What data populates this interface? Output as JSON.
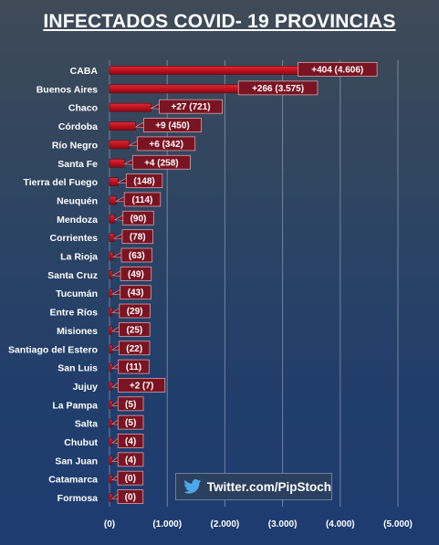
{
  "chart_data": {
    "type": "bar",
    "title": "INFECTADOS COVID- 19  PROVINCIAS",
    "orientation": "horizontal",
    "categories": [
      "CABA",
      "Buenos Aires",
      "Chaco",
      "Córdoba",
      "Río Negro",
      "Santa Fe",
      "Tierra del Fuego",
      "Neuquén",
      "Mendoza",
      "Corrientes",
      "La Rioja",
      "Santa Cruz",
      "Tucumán",
      "Entre Ríos",
      "Misiones",
      "Santiago del Estero",
      "San Luis",
      "Jujuy",
      "La Pampa",
      "Salta",
      "Chubut",
      "San Juan",
      "Catamarca",
      "Formosa"
    ],
    "values": [
      4606,
      3575,
      721,
      450,
      342,
      258,
      148,
      114,
      90,
      78,
      63,
      49,
      43,
      29,
      25,
      22,
      11,
      7,
      5,
      5,
      4,
      4,
      0,
      0
    ],
    "new_cases": [
      404,
      266,
      27,
      9,
      6,
      4,
      null,
      null,
      null,
      null,
      null,
      null,
      null,
      null,
      null,
      null,
      null,
      2,
      null,
      null,
      null,
      null,
      null,
      null
    ],
    "data_labels": [
      "+404  (4.606)",
      "+266  (3.575)",
      "+27  (721)",
      "+9  (450)",
      "+6  (342)",
      "+4  (258)",
      "(148)",
      "(114)",
      "(90)",
      "(78)",
      "(63)",
      "(49)",
      "(43)",
      "(29)",
      "(25)",
      "(22)",
      "(11)",
      "+2  (7)",
      "(5)",
      "(5)",
      "(4)",
      "(4)",
      "(0)",
      "(0)"
    ],
    "x_ticks": [
      0,
      1000,
      2000,
      3000,
      4000,
      5000
    ],
    "x_tick_labels": [
      "(0)",
      "(1.000)",
      "(2.000)",
      "(3.000)",
      "(4.000)",
      "(5.000)"
    ],
    "xlim": [
      0,
      5000
    ],
    "grid": "vertical",
    "colors": {
      "bar": "#c0101e",
      "label_box": "#7a1422",
      "background": "#1f3a62"
    }
  },
  "watermark": {
    "text": "Twitter.com/PipStoch",
    "icon": "twitter-bird-icon"
  }
}
